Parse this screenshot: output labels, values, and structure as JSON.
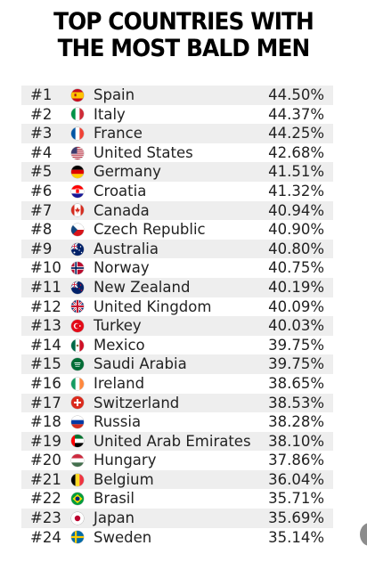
{
  "title": {
    "line1": "TOP COUNTRIES WITH",
    "line2": "THE MOST BALD MEN"
  },
  "rows": [
    {
      "rank": "#1",
      "country": "Spain",
      "percent": "44.50%",
      "flag": "spain-flag-icon"
    },
    {
      "rank": "#2",
      "country": "Italy",
      "percent": "44.37%",
      "flag": "italy-flag-icon"
    },
    {
      "rank": "#3",
      "country": "France",
      "percent": "44.25%",
      "flag": "france-flag-icon"
    },
    {
      "rank": "#4",
      "country": "United States",
      "percent": "42.68%",
      "flag": "united-states-flag-icon"
    },
    {
      "rank": "#5",
      "country": "Germany",
      "percent": "41.51%",
      "flag": "germany-flag-icon"
    },
    {
      "rank": "#6",
      "country": "Croatia",
      "percent": "41.32%",
      "flag": "croatia-flag-icon"
    },
    {
      "rank": "#7",
      "country": "Canada",
      "percent": "40.94%",
      "flag": "canada-flag-icon"
    },
    {
      "rank": "#8",
      "country": "Czech Republic",
      "percent": "40.90%",
      "flag": "czech-republic-flag-icon"
    },
    {
      "rank": "#9",
      "country": "Australia",
      "percent": "40.80%",
      "flag": "australia-flag-icon"
    },
    {
      "rank": "#10",
      "country": "Norway",
      "percent": "40.75%",
      "flag": "norway-flag-icon"
    },
    {
      "rank": "#11",
      "country": "New Zealand",
      "percent": "40.19%",
      "flag": "new-zealand-flag-icon"
    },
    {
      "rank": "#12",
      "country": "United Kingdom",
      "percent": "40.09%",
      "flag": "united-kingdom-flag-icon"
    },
    {
      "rank": "#13",
      "country": "Turkey",
      "percent": "40.03%",
      "flag": "turkey-flag-icon"
    },
    {
      "rank": "#14",
      "country": "Mexico",
      "percent": "39.75%",
      "flag": "mexico-flag-icon"
    },
    {
      "rank": "#15",
      "country": "Saudi Arabia",
      "percent": "39.75%",
      "flag": "saudi-arabia-flag-icon"
    },
    {
      "rank": "#16",
      "country": "Ireland",
      "percent": "38.65%",
      "flag": "ireland-flag-icon"
    },
    {
      "rank": "#17",
      "country": "Switzerland",
      "percent": "38.53%",
      "flag": "switzerland-flag-icon"
    },
    {
      "rank": "#18",
      "country": "Russia",
      "percent": "38.28%",
      "flag": "russia-flag-icon"
    },
    {
      "rank": "#19",
      "country": "United Arab Emirates",
      "percent": "38.10%",
      "flag": "united-arab-emirates-flag-icon"
    },
    {
      "rank": "#20",
      "country": "Hungary",
      "percent": "37.86%",
      "flag": "hungary-flag-icon"
    },
    {
      "rank": "#21",
      "country": "Belgium",
      "percent": "36.04%",
      "flag": "belgium-flag-icon"
    },
    {
      "rank": "#22",
      "country": "Brasil",
      "percent": "35.71%",
      "flag": "brazil-flag-icon"
    },
    {
      "rank": "#23",
      "country": "Japan",
      "percent": "35.69%",
      "flag": "japan-flag-icon"
    },
    {
      "rank": "#24",
      "country": "Sweden",
      "percent": "35.14%",
      "flag": "sweden-flag-icon"
    }
  ]
}
